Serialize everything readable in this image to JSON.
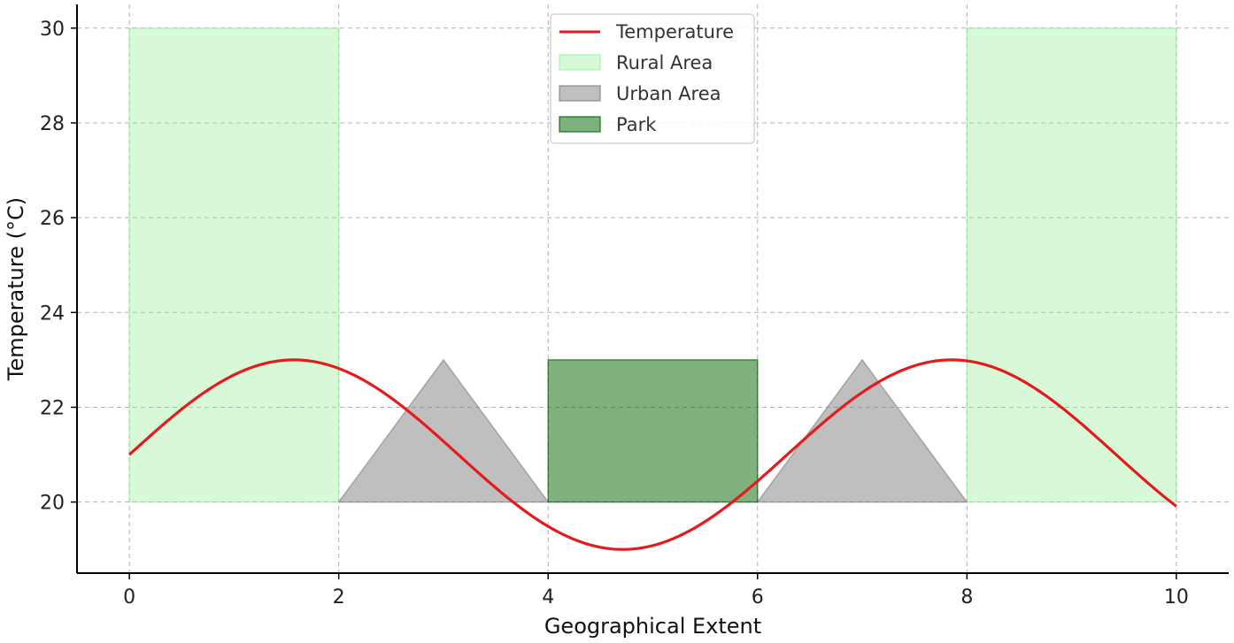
{
  "chart_data": {
    "type": "line",
    "title": "",
    "xlabel": "Geographical Extent",
    "ylabel": "Temperature (°C)",
    "xlim": [
      -0.5,
      10.5
    ],
    "ylim": [
      18.5,
      30.5
    ],
    "xticks": [
      0,
      2,
      4,
      6,
      8,
      10
    ],
    "yticks": [
      20,
      22,
      24,
      26,
      28,
      30
    ],
    "grid": true,
    "legend_position": "top-center",
    "series": [
      {
        "name": "Temperature",
        "kind": "line",
        "color": "#e41a1c",
        "function": "21 + 2*sin(x)",
        "x_range": [
          0,
          10
        ]
      }
    ],
    "regions": [
      {
        "name": "Rural Area",
        "kind": "rect",
        "color": "#90ee90",
        "opacity": 0.35,
        "rects": [
          {
            "x": [
              0,
              2
            ],
            "y": [
              20,
              30
            ]
          },
          {
            "x": [
              8,
              10
            ],
            "y": [
              20,
              30
            ]
          }
        ]
      },
      {
        "name": "Urban Area",
        "kind": "triangle",
        "color": "#808080",
        "opacity": 0.5,
        "triangles": [
          [
            [
              2,
              20
            ],
            [
              3,
              23
            ],
            [
              4,
              20
            ]
          ],
          [
            [
              6,
              20
            ],
            [
              7,
              23
            ],
            [
              8,
              20
            ]
          ]
        ]
      },
      {
        "name": "Park",
        "kind": "rect",
        "color": "#006400",
        "opacity": 0.5,
        "rects": [
          {
            "x": [
              4,
              6
            ],
            "y": [
              20,
              23
            ]
          }
        ]
      }
    ]
  }
}
